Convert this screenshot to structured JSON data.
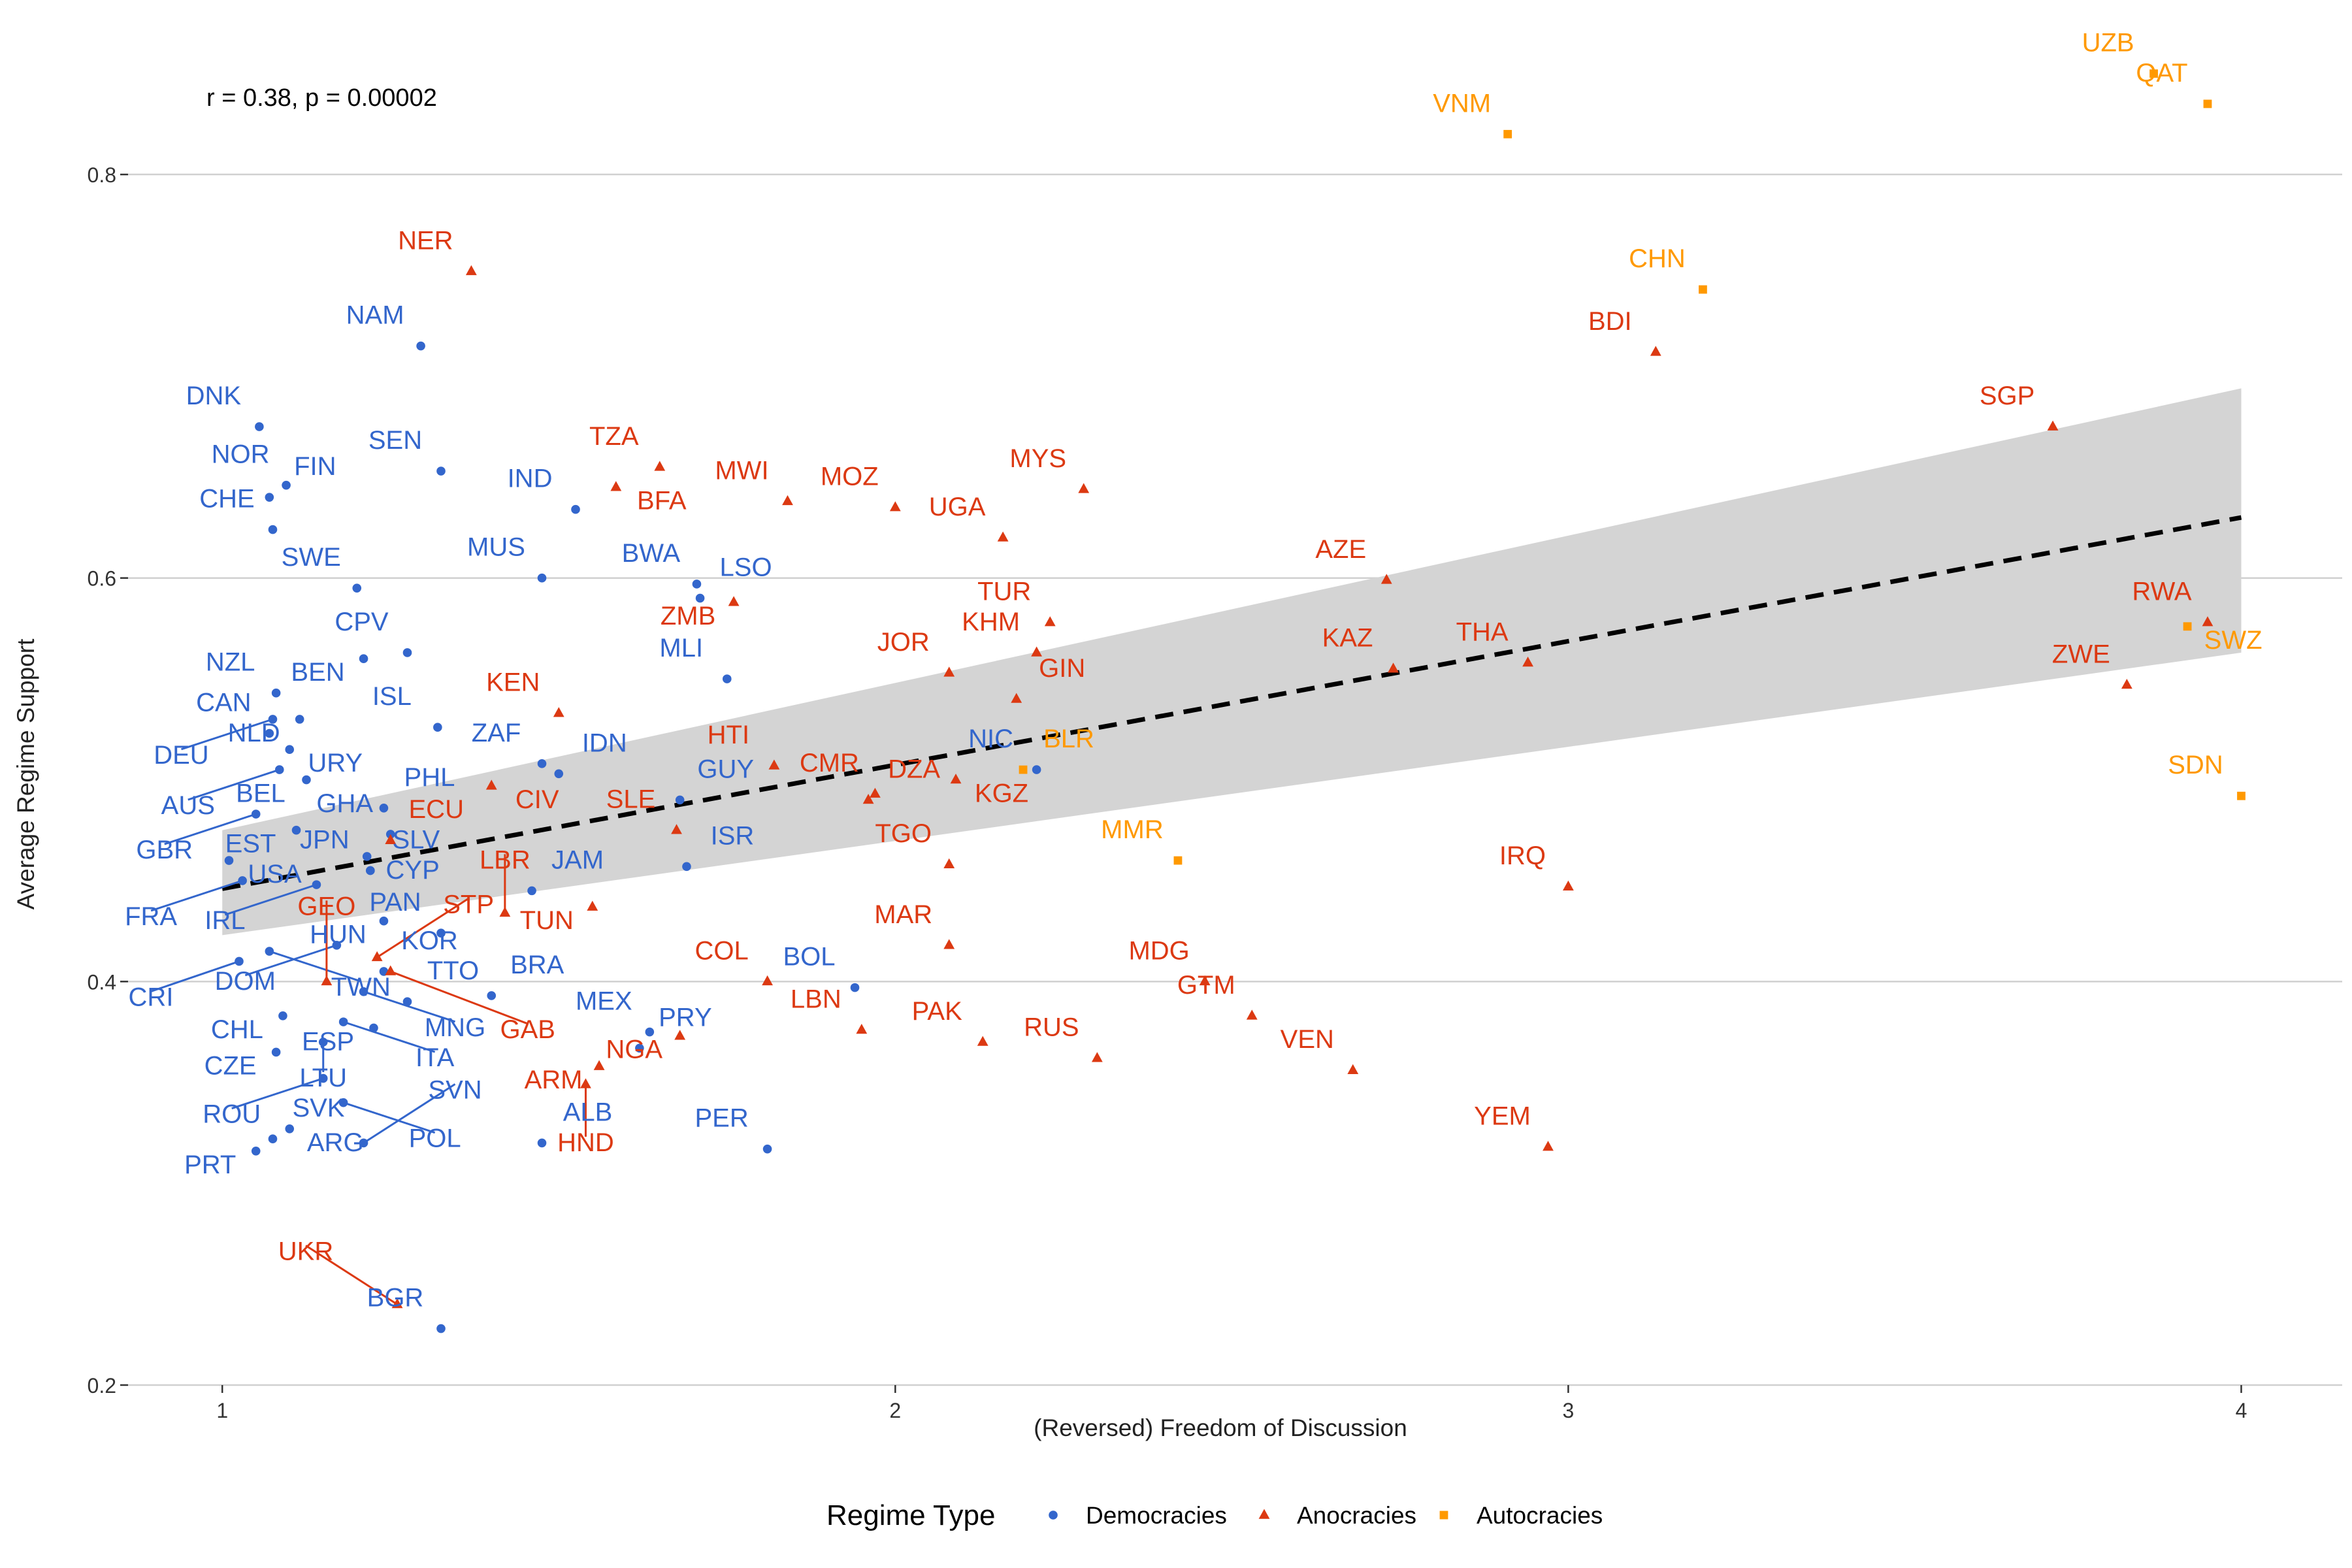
{
  "chart_data": {
    "type": "scatter",
    "annotation": "r = 0.38, p = 0.00002",
    "xlabel": "(Reversed) Freedom of Discussion",
    "ylabel": "Average Regime Support",
    "xlim": [
      0.86,
      4.15
    ],
    "ylim": [
      0.2,
      0.88
    ],
    "x_ticks": [
      1,
      2,
      3,
      4
    ],
    "y_ticks": [
      0.2,
      0.4,
      0.6,
      0.8
    ],
    "x_tick_labels": [
      "1",
      "2",
      "3",
      "4"
    ],
    "y_tick_labels": [
      "0.2",
      "0.4",
      "0.6",
      "0.8"
    ],
    "grid": "horizontal-major",
    "legend": {
      "title": "Regime Type",
      "placement": "bottom",
      "items": [
        {
          "key": "dem",
          "label": "Democracies",
          "shape": "circle"
        },
        {
          "key": "ano",
          "label": "Anocracies",
          "shape": "triangle"
        },
        {
          "key": "aut",
          "label": "Autocracies",
          "shape": "square"
        }
      ]
    },
    "colors": {
      "dem": "#3366cc",
      "ano": "#dc3912",
      "aut": "#ff9900",
      "band": "#d4d4d4",
      "fit": "#000000",
      "grid": "#d0d0d0"
    },
    "trend": {
      "x": [
        1,
        4
      ],
      "y": [
        0.446,
        0.63
      ]
    },
    "confidence_band": {
      "x": [
        1,
        4
      ],
      "lower": [
        0.423,
        0.563
      ],
      "upper": [
        0.475,
        0.694
      ]
    },
    "points": [
      {
        "code": "DNK",
        "x": 1.055,
        "y": 0.675,
        "type": "dem"
      },
      {
        "code": "NOR",
        "x": 1.095,
        "y": 0.646,
        "type": "dem"
      },
      {
        "code": "FIN",
        "x": 1.07,
        "y": 0.64,
        "type": "dem"
      },
      {
        "code": "CHE",
        "x": 1.075,
        "y": 0.624,
        "type": "dem"
      },
      {
        "code": "NAM",
        "x": 1.295,
        "y": 0.715,
        "type": "dem"
      },
      {
        "code": "SEN",
        "x": 1.325,
        "y": 0.653,
        "type": "dem"
      },
      {
        "code": "IND",
        "x": 1.525,
        "y": 0.634,
        "type": "dem"
      },
      {
        "code": "BWA",
        "x": 1.705,
        "y": 0.597,
        "type": "dem"
      },
      {
        "code": "MUS",
        "x": 1.475,
        "y": 0.6,
        "type": "dem"
      },
      {
        "code": "LSO",
        "x": 1.71,
        "y": 0.59,
        "type": "dem"
      },
      {
        "code": "SWE",
        "x": 1.2,
        "y": 0.595,
        "type": "dem"
      },
      {
        "code": "NZL",
        "x": 1.08,
        "y": 0.543,
        "type": "dem"
      },
      {
        "code": "CPV",
        "x": 1.275,
        "y": 0.563,
        "type": "dem"
      },
      {
        "code": "BEN",
        "x": 1.21,
        "y": 0.56,
        "type": "dem"
      },
      {
        "code": "NLD",
        "x": 1.115,
        "y": 0.53,
        "type": "dem"
      },
      {
        "code": "DEU",
        "x": 1.075,
        "y": 0.53,
        "type": "dem"
      },
      {
        "code": "MLI",
        "x": 1.75,
        "y": 0.55,
        "type": "dem"
      },
      {
        "code": "ISL",
        "x": 1.32,
        "y": 0.526,
        "type": "dem"
      },
      {
        "code": "CAN",
        "x": 1.07,
        "y": 0.523,
        "type": "dem"
      },
      {
        "code": "URY",
        "x": 1.1,
        "y": 0.515,
        "type": "dem"
      },
      {
        "code": "AUS",
        "x": 1.085,
        "y": 0.505,
        "type": "dem"
      },
      {
        "code": "BEL",
        "x": 1.125,
        "y": 0.5,
        "type": "dem"
      },
      {
        "code": "ZAF",
        "x": 1.475,
        "y": 0.508,
        "type": "dem"
      },
      {
        "code": "IDN",
        "x": 1.5,
        "y": 0.503,
        "type": "dem"
      },
      {
        "code": "GUY",
        "x": 1.68,
        "y": 0.49,
        "type": "dem"
      },
      {
        "code": "PHL",
        "x": 1.24,
        "y": 0.486,
        "type": "dem"
      },
      {
        "code": "GHA",
        "x": 1.25,
        "y": 0.473,
        "type": "dem"
      },
      {
        "code": "GBR",
        "x": 1.05,
        "y": 0.483,
        "type": "dem"
      },
      {
        "code": "EST",
        "x": 1.11,
        "y": 0.475,
        "type": "dem"
      },
      {
        "code": "CYP",
        "x": 1.215,
        "y": 0.462,
        "type": "dem"
      },
      {
        "code": "JPN",
        "x": 1.22,
        "y": 0.455,
        "type": "dem"
      },
      {
        "code": "USA",
        "x": 1.01,
        "y": 0.46,
        "type": "dem"
      },
      {
        "code": "IRL",
        "x": 1.14,
        "y": 0.448,
        "type": "dem"
      },
      {
        "code": "SLV",
        "x": 1.22,
        "y": 0.455,
        "type": "dem"
      },
      {
        "code": "JAM",
        "x": 1.46,
        "y": 0.445,
        "type": "dem"
      },
      {
        "code": "HUN",
        "x": 1.24,
        "y": 0.43,
        "type": "dem"
      },
      {
        "code": "ISR",
        "x": 1.69,
        "y": 0.457,
        "type": "dem"
      },
      {
        "code": "FRA",
        "x": 1.03,
        "y": 0.45,
        "type": "dem"
      },
      {
        "code": "DOM",
        "x": 1.17,
        "y": 0.418,
        "type": "dem"
      },
      {
        "code": "PAN",
        "x": 1.325,
        "y": 0.424,
        "type": "dem"
      },
      {
        "code": "TWN",
        "x": 1.07,
        "y": 0.415,
        "type": "dem"
      },
      {
        "code": "CRI",
        "x": 1.025,
        "y": 0.41,
        "type": "dem"
      },
      {
        "code": "KOR",
        "x": 1.24,
        "y": 0.405,
        "type": "dem"
      },
      {
        "code": "BRA",
        "x": 1.4,
        "y": 0.393,
        "type": "dem"
      },
      {
        "code": "TTO",
        "x": 1.275,
        "y": 0.39,
        "type": "dem"
      },
      {
        "code": "MEX",
        "x": 1.635,
        "y": 0.375,
        "type": "dem"
      },
      {
        "code": "BOL",
        "x": 1.94,
        "y": 0.397,
        "type": "dem"
      },
      {
        "code": "CHL",
        "x": 1.09,
        "y": 0.383,
        "type": "dem"
      },
      {
        "code": "MNG",
        "x": 1.21,
        "y": 0.395,
        "type": "dem"
      },
      {
        "code": "ESP",
        "x": 1.225,
        "y": 0.377,
        "type": "dem"
      },
      {
        "code": "CZE",
        "x": 1.08,
        "y": 0.365,
        "type": "dem"
      },
      {
        "code": "PRY",
        "x": 1.62,
        "y": 0.367,
        "type": "dem"
      },
      {
        "code": "ITA",
        "x": 1.18,
        "y": 0.38,
        "type": "dem"
      },
      {
        "code": "LTU",
        "x": 1.15,
        "y": 0.37,
        "type": "dem"
      },
      {
        "code": "ROU",
        "x": 1.15,
        "y": 0.352,
        "type": "dem"
      },
      {
        "code": "ARG",
        "x": 1.1,
        "y": 0.327,
        "type": "dem"
      },
      {
        "code": "POL",
        "x": 1.18,
        "y": 0.34,
        "type": "dem"
      },
      {
        "code": "ALB",
        "x": 1.475,
        "y": 0.32,
        "type": "dem"
      },
      {
        "code": "PER",
        "x": 1.81,
        "y": 0.317,
        "type": "dem"
      },
      {
        "code": "SVK",
        "x": 1.075,
        "y": 0.322,
        "type": "dem"
      },
      {
        "code": "PRT",
        "x": 1.05,
        "y": 0.316,
        "type": "dem"
      },
      {
        "code": "SVN",
        "x": 1.21,
        "y": 0.32,
        "type": "dem"
      },
      {
        "code": "BGR",
        "x": 1.325,
        "y": 0.228,
        "type": "dem"
      },
      {
        "code": "NIC",
        "x": 2.21,
        "y": 0.505,
        "type": "dem"
      },
      {
        "code": "NER",
        "x": 1.37,
        "y": 0.752,
        "type": "ano"
      },
      {
        "code": "TZA",
        "x": 1.65,
        "y": 0.655,
        "type": "ano"
      },
      {
        "code": "BFA",
        "x": 1.585,
        "y": 0.645,
        "type": "ano"
      },
      {
        "code": "MWI",
        "x": 1.84,
        "y": 0.638,
        "type": "ano"
      },
      {
        "code": "MYS",
        "x": 2.28,
        "y": 0.644,
        "type": "ano"
      },
      {
        "code": "MOZ",
        "x": 2.0,
        "y": 0.635,
        "type": "ano"
      },
      {
        "code": "UGA",
        "x": 2.16,
        "y": 0.62,
        "type": "ano"
      },
      {
        "code": "TUR",
        "x": 2.23,
        "y": 0.578,
        "type": "ano"
      },
      {
        "code": "ZMB",
        "x": 1.76,
        "y": 0.588,
        "type": "ano"
      },
      {
        "code": "KEN",
        "x": 1.5,
        "y": 0.533,
        "type": "ano"
      },
      {
        "code": "JOR",
        "x": 2.08,
        "y": 0.553,
        "type": "ano"
      },
      {
        "code": "KHM",
        "x": 2.21,
        "y": 0.563,
        "type": "ano"
      },
      {
        "code": "HTI",
        "x": 1.82,
        "y": 0.507,
        "type": "ano"
      },
      {
        "code": "GIN",
        "x": 2.18,
        "y": 0.54,
        "type": "ano"
      },
      {
        "code": "CIV",
        "x": 1.4,
        "y": 0.497,
        "type": "ano"
      },
      {
        "code": "CMR",
        "x": 1.97,
        "y": 0.493,
        "type": "ano"
      },
      {
        "code": "DZA",
        "x": 1.96,
        "y": 0.49,
        "type": "ano"
      },
      {
        "code": "KGZ",
        "x": 2.09,
        "y": 0.5,
        "type": "ano"
      },
      {
        "code": "ECU",
        "x": 1.25,
        "y": 0.47,
        "type": "ano"
      },
      {
        "code": "SLE",
        "x": 1.675,
        "y": 0.475,
        "type": "ano"
      },
      {
        "code": "STP",
        "x": 1.23,
        "y": 0.412,
        "type": "ano"
      },
      {
        "code": "TUN",
        "x": 1.55,
        "y": 0.437,
        "type": "ano"
      },
      {
        "code": "LBR",
        "x": 1.42,
        "y": 0.434,
        "type": "ano"
      },
      {
        "code": "GAB",
        "x": 1.25,
        "y": 0.405,
        "type": "ano"
      },
      {
        "code": "GEO",
        "x": 1.155,
        "y": 0.4,
        "type": "ano"
      },
      {
        "code": "TGO",
        "x": 2.08,
        "y": 0.458,
        "type": "ano"
      },
      {
        "code": "MAR",
        "x": 2.08,
        "y": 0.418,
        "type": "ano"
      },
      {
        "code": "COL",
        "x": 1.81,
        "y": 0.4,
        "type": "ano"
      },
      {
        "code": "NGA",
        "x": 1.68,
        "y": 0.373,
        "type": "ano"
      },
      {
        "code": "LBN",
        "x": 1.95,
        "y": 0.376,
        "type": "ano"
      },
      {
        "code": "ARM",
        "x": 1.56,
        "y": 0.358,
        "type": "ano"
      },
      {
        "code": "HND",
        "x": 1.54,
        "y": 0.349,
        "type": "ano"
      },
      {
        "code": "PAK",
        "x": 2.13,
        "y": 0.37,
        "type": "ano"
      },
      {
        "code": "RUS",
        "x": 2.3,
        "y": 0.362,
        "type": "ano"
      },
      {
        "code": "MDG",
        "x": 2.46,
        "y": 0.4,
        "type": "ano"
      },
      {
        "code": "GTM",
        "x": 2.53,
        "y": 0.383,
        "type": "ano"
      },
      {
        "code": "VEN",
        "x": 2.68,
        "y": 0.356,
        "type": "ano"
      },
      {
        "code": "UKR",
        "x": 1.26,
        "y": 0.24,
        "type": "ano"
      },
      {
        "code": "AZE",
        "x": 2.73,
        "y": 0.599,
        "type": "ano"
      },
      {
        "code": "KAZ",
        "x": 2.74,
        "y": 0.555,
        "type": "ano"
      },
      {
        "code": "THA",
        "x": 2.94,
        "y": 0.558,
        "type": "ano"
      },
      {
        "code": "IRQ",
        "x": 3.0,
        "y": 0.447,
        "type": "ano"
      },
      {
        "code": "YEM",
        "x": 2.97,
        "y": 0.318,
        "type": "ano"
      },
      {
        "code": "BDI",
        "x": 3.13,
        "y": 0.712,
        "type": "ano"
      },
      {
        "code": "SGP",
        "x": 3.72,
        "y": 0.675,
        "type": "ano"
      },
      {
        "code": "RWA",
        "x": 3.95,
        "y": 0.578,
        "type": "ano"
      },
      {
        "code": "ZWE",
        "x": 3.83,
        "y": 0.547,
        "type": "ano"
      },
      {
        "code": "UZB",
        "x": 3.87,
        "y": 0.85,
        "type": "aut"
      },
      {
        "code": "QAT",
        "x": 3.95,
        "y": 0.835,
        "type": "aut"
      },
      {
        "code": "VNM",
        "x": 2.91,
        "y": 0.82,
        "type": "aut"
      },
      {
        "code": "CHN",
        "x": 3.2,
        "y": 0.743,
        "type": "aut"
      },
      {
        "code": "SWZ",
        "x": 3.92,
        "y": 0.576,
        "type": "aut"
      },
      {
        "code": "SDN",
        "x": 4.0,
        "y": 0.492,
        "type": "aut"
      },
      {
        "code": "BLR",
        "x": 2.19,
        "y": 0.505,
        "type": "aut"
      },
      {
        "code": "MMR",
        "x": 2.42,
        "y": 0.46,
        "type": "aut"
      }
    ]
  }
}
